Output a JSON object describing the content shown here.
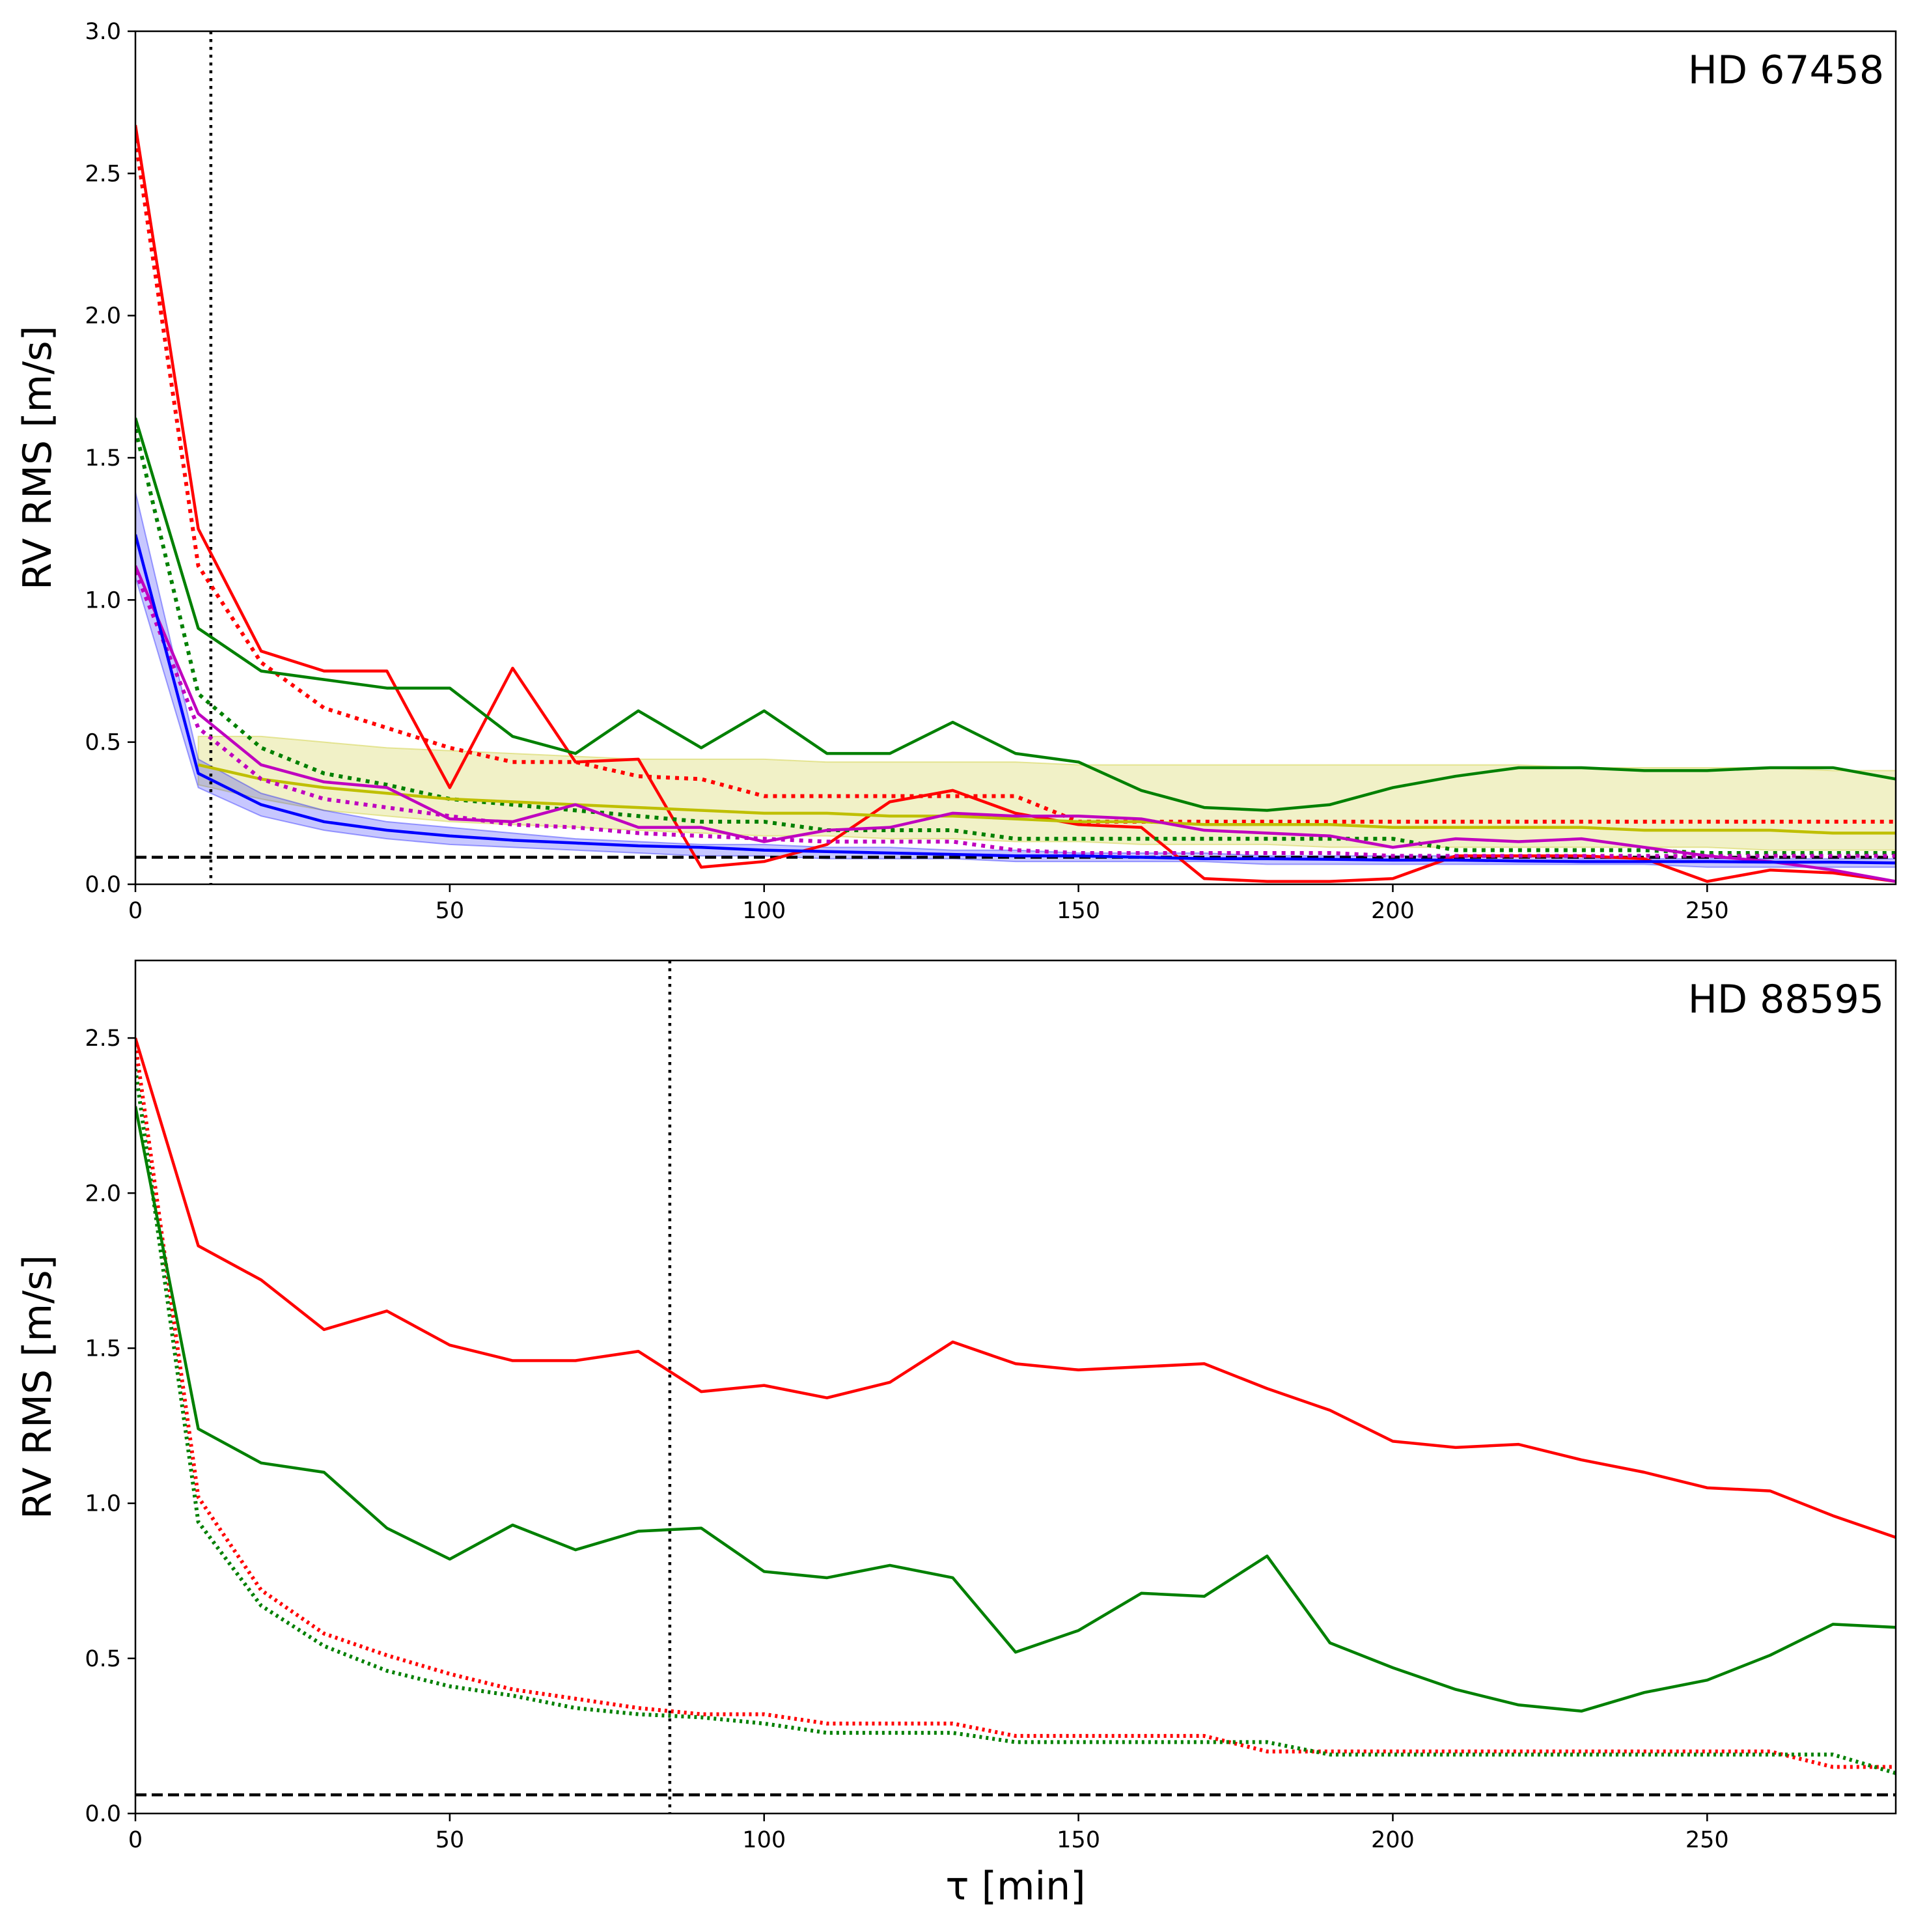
{
  "chart_data": [
    {
      "type": "line",
      "title": "HD 67458",
      "xlabel": "",
      "ylabel": "RV RMS [m/s]",
      "xlim": [
        0,
        280
      ],
      "ylim": [
        0,
        3.0
      ],
      "xticks": [
        0,
        50,
        100,
        150,
        200,
        250
      ],
      "xtick_labels": [
        "0",
        "50",
        "100",
        "150",
        "200",
        "250"
      ],
      "yticks": [
        0.0,
        0.5,
        1.0,
        1.5,
        2.0,
        2.5,
        3.0
      ],
      "ytick_labels": [
        "0.0",
        "0.5",
        "1.0",
        "1.5",
        "2.0",
        "2.5",
        "3.0"
      ],
      "vline": 12,
      "hline": 0.095,
      "bands": [
        {
          "name": "yellow-band",
          "color": "#bfbf00",
          "x": [
            10,
            20,
            30,
            40,
            50,
            60,
            70,
            80,
            90,
            100,
            110,
            120,
            130,
            140,
            150,
            160,
            170,
            180,
            190,
            200,
            210,
            220,
            230,
            240,
            250,
            260,
            270,
            280
          ],
          "lower": [
            0.35,
            0.3,
            0.26,
            0.24,
            0.22,
            0.21,
            0.2,
            0.19,
            0.18,
            0.17,
            0.17,
            0.16,
            0.16,
            0.15,
            0.15,
            0.14,
            0.14,
            0.14,
            0.13,
            0.13,
            0.13,
            0.13,
            0.13,
            0.13,
            0.13,
            0.12,
            0.12,
            0.12
          ],
          "upper": [
            0.52,
            0.52,
            0.5,
            0.48,
            0.47,
            0.46,
            0.45,
            0.44,
            0.44,
            0.44,
            0.43,
            0.43,
            0.43,
            0.43,
            0.42,
            0.42,
            0.42,
            0.42,
            0.42,
            0.42,
            0.42,
            0.42,
            0.41,
            0.41,
            0.41,
            0.41,
            0.4,
            0.4
          ]
        },
        {
          "name": "blue-band",
          "color": "#0000ff",
          "x": [
            0,
            10,
            20,
            30,
            40,
            50,
            60,
            70,
            80,
            90,
            100,
            110,
            120,
            130,
            140,
            150,
            160,
            170,
            180,
            190,
            200,
            210,
            220,
            230,
            240,
            250,
            260,
            270,
            280
          ],
          "lower": [
            1.08,
            0.34,
            0.24,
            0.19,
            0.16,
            0.14,
            0.13,
            0.12,
            0.11,
            0.1,
            0.1,
            0.09,
            0.09,
            0.09,
            0.08,
            0.08,
            0.08,
            0.08,
            0.07,
            0.07,
            0.07,
            0.07,
            0.07,
            0.07,
            0.07,
            0.06,
            0.06,
            0.06,
            0.06
          ],
          "upper": [
            1.38,
            0.44,
            0.32,
            0.26,
            0.22,
            0.2,
            0.18,
            0.16,
            0.15,
            0.14,
            0.14,
            0.13,
            0.13,
            0.12,
            0.12,
            0.11,
            0.11,
            0.11,
            0.1,
            0.1,
            0.1,
            0.1,
            0.1,
            0.09,
            0.09,
            0.09,
            0.09,
            0.09,
            0.09
          ]
        }
      ],
      "series": [
        {
          "name": "red-solid",
          "color": "#ff0000",
          "style": "solid",
          "x": [
            0,
            10,
            20,
            30,
            40,
            50,
            60,
            70,
            80,
            90,
            100,
            110,
            120,
            130,
            140,
            150,
            160,
            170,
            180,
            190,
            200,
            210,
            220,
            230,
            240,
            250,
            260,
            270,
            280
          ],
          "values": [
            2.67,
            1.25,
            0.82,
            0.75,
            0.75,
            0.34,
            0.76,
            0.43,
            0.44,
            0.06,
            0.08,
            0.14,
            0.29,
            0.33,
            0.25,
            0.21,
            0.2,
            0.02,
            0.01,
            0.01,
            0.02,
            0.1,
            0.1,
            0.1,
            0.09,
            0.01,
            0.05,
            0.04,
            0.01
          ]
        },
        {
          "name": "red-dotted",
          "color": "#ff0000",
          "style": "dotted",
          "x": [
            0,
            10,
            20,
            30,
            40,
            50,
            60,
            70,
            80,
            90,
            100,
            110,
            120,
            130,
            140,
            150,
            160,
            170,
            180,
            190,
            200,
            210,
            220,
            230,
            240,
            250,
            260,
            270,
            280
          ],
          "values": [
            2.62,
            1.12,
            0.78,
            0.62,
            0.55,
            0.48,
            0.43,
            0.43,
            0.38,
            0.37,
            0.31,
            0.31,
            0.31,
            0.31,
            0.31,
            0.22,
            0.22,
            0.22,
            0.22,
            0.22,
            0.22,
            0.22,
            0.22,
            0.22,
            0.22,
            0.22,
            0.22,
            0.22,
            0.22
          ]
        },
        {
          "name": "green-solid",
          "color": "#008000",
          "style": "solid",
          "x": [
            0,
            10,
            20,
            30,
            40,
            50,
            60,
            70,
            80,
            90,
            100,
            110,
            120,
            130,
            140,
            150,
            160,
            170,
            180,
            190,
            200,
            210,
            220,
            230,
            240,
            250,
            260,
            270,
            280
          ],
          "values": [
            1.64,
            0.9,
            0.75,
            0.72,
            0.69,
            0.69,
            0.52,
            0.46,
            0.61,
            0.48,
            0.61,
            0.46,
            0.46,
            0.57,
            0.46,
            0.43,
            0.33,
            0.27,
            0.26,
            0.28,
            0.34,
            0.38,
            0.41,
            0.41,
            0.4,
            0.4,
            0.41,
            0.41,
            0.37
          ]
        },
        {
          "name": "green-dotted",
          "color": "#008000",
          "style": "dotted",
          "x": [
            0,
            10,
            20,
            30,
            40,
            50,
            60,
            70,
            80,
            90,
            100,
            110,
            120,
            130,
            140,
            150,
            160,
            170,
            180,
            190,
            200,
            210,
            220,
            230,
            240,
            250,
            260,
            270,
            280
          ],
          "values": [
            1.6,
            0.67,
            0.48,
            0.39,
            0.35,
            0.3,
            0.28,
            0.26,
            0.24,
            0.22,
            0.22,
            0.19,
            0.19,
            0.19,
            0.16,
            0.16,
            0.16,
            0.16,
            0.16,
            0.16,
            0.16,
            0.12,
            0.12,
            0.12,
            0.12,
            0.11,
            0.11,
            0.11,
            0.11
          ]
        },
        {
          "name": "yellow-solid",
          "color": "#bfbf00",
          "style": "solid",
          "x": [
            10,
            20,
            30,
            40,
            50,
            60,
            70,
            80,
            90,
            100,
            110,
            120,
            130,
            140,
            150,
            160,
            170,
            180,
            190,
            200,
            210,
            220,
            230,
            240,
            250,
            260,
            270,
            280
          ],
          "values": [
            0.42,
            0.37,
            0.34,
            0.32,
            0.3,
            0.29,
            0.28,
            0.27,
            0.26,
            0.25,
            0.25,
            0.24,
            0.24,
            0.23,
            0.22,
            0.22,
            0.21,
            0.21,
            0.21,
            0.2,
            0.2,
            0.2,
            0.2,
            0.19,
            0.19,
            0.19,
            0.18,
            0.18
          ]
        },
        {
          "name": "magenta-solid",
          "color": "#bf00bf",
          "style": "solid",
          "x": [
            0,
            10,
            20,
            30,
            40,
            50,
            60,
            70,
            80,
            90,
            100,
            110,
            120,
            130,
            140,
            150,
            160,
            170,
            180,
            190,
            200,
            210,
            220,
            230,
            240,
            250,
            260,
            270,
            280
          ],
          "values": [
            1.12,
            0.6,
            0.42,
            0.36,
            0.34,
            0.23,
            0.22,
            0.28,
            0.2,
            0.2,
            0.15,
            0.19,
            0.2,
            0.25,
            0.24,
            0.24,
            0.23,
            0.19,
            0.18,
            0.17,
            0.13,
            0.16,
            0.15,
            0.16,
            0.13,
            0.1,
            0.08,
            0.05,
            0.01
          ]
        },
        {
          "name": "magenta-dotted",
          "color": "#bf00bf",
          "style": "dotted",
          "x": [
            0,
            10,
            20,
            30,
            40,
            50,
            60,
            70,
            80,
            90,
            100,
            110,
            120,
            130,
            140,
            150,
            160,
            170,
            180,
            190,
            200,
            210,
            220,
            230,
            240,
            250,
            260,
            270,
            280
          ],
          "values": [
            1.1,
            0.55,
            0.37,
            0.3,
            0.27,
            0.24,
            0.21,
            0.2,
            0.18,
            0.17,
            0.16,
            0.15,
            0.15,
            0.15,
            0.12,
            0.11,
            0.11,
            0.11,
            0.11,
            0.11,
            0.1,
            0.1,
            0.1,
            0.1,
            0.1,
            0.1,
            0.1,
            0.1,
            0.1
          ]
        },
        {
          "name": "blue-solid",
          "color": "#0000ff",
          "style": "solid",
          "x": [
            0,
            10,
            20,
            30,
            40,
            50,
            60,
            70,
            80,
            90,
            100,
            110,
            120,
            130,
            140,
            150,
            160,
            170,
            180,
            190,
            200,
            210,
            220,
            230,
            240,
            250,
            260,
            270,
            280
          ],
          "values": [
            1.23,
            0.39,
            0.28,
            0.22,
            0.19,
            0.17,
            0.155,
            0.145,
            0.135,
            0.13,
            0.12,
            0.115,
            0.11,
            0.105,
            0.1,
            0.1,
            0.095,
            0.09,
            0.09,
            0.088,
            0.085,
            0.085,
            0.082,
            0.08,
            0.08,
            0.08,
            0.078,
            0.078,
            0.075
          ]
        }
      ]
    },
    {
      "type": "line",
      "title": "HD 88595",
      "xlabel": "τ [min]",
      "ylabel": "RV RMS [m/s]",
      "xlim": [
        0,
        280
      ],
      "ylim": [
        0,
        2.75
      ],
      "xticks": [
        0,
        50,
        100,
        150,
        200,
        250
      ],
      "xtick_labels": [
        "0",
        "50",
        "100",
        "150",
        "200",
        "250"
      ],
      "yticks": [
        0.0,
        0.5,
        1.0,
        1.5,
        2.0,
        2.5
      ],
      "ytick_labels": [
        "0.0",
        "0.5",
        "1.0",
        "1.5",
        "2.0",
        "2.5"
      ],
      "vline": 85,
      "hline": 0.06,
      "bands": [],
      "series": [
        {
          "name": "red-solid",
          "color": "#ff0000",
          "style": "solid",
          "x": [
            0,
            10,
            20,
            30,
            40,
            50,
            60,
            70,
            80,
            90,
            100,
            110,
            120,
            130,
            140,
            150,
            160,
            170,
            180,
            190,
            200,
            210,
            220,
            230,
            240,
            250,
            260,
            270,
            280
          ],
          "values": [
            2.5,
            1.83,
            1.72,
            1.56,
            1.62,
            1.51,
            1.46,
            1.46,
            1.49,
            1.36,
            1.38,
            1.34,
            1.39,
            1.52,
            1.45,
            1.43,
            1.44,
            1.45,
            1.37,
            1.3,
            1.2,
            1.18,
            1.19,
            1.14,
            1.1,
            1.05,
            1.04,
            0.96,
            0.89
          ]
        },
        {
          "name": "red-dotted",
          "color": "#ff0000",
          "style": "dotted",
          "x": [
            0,
            10,
            20,
            30,
            40,
            50,
            60,
            70,
            80,
            90,
            100,
            110,
            120,
            130,
            140,
            150,
            160,
            170,
            180,
            190,
            200,
            210,
            220,
            230,
            240,
            250,
            260,
            270,
            280
          ],
          "values": [
            2.48,
            1.02,
            0.72,
            0.58,
            0.51,
            0.45,
            0.4,
            0.37,
            0.34,
            0.32,
            0.32,
            0.29,
            0.29,
            0.29,
            0.25,
            0.25,
            0.25,
            0.25,
            0.2,
            0.2,
            0.2,
            0.2,
            0.2,
            0.2,
            0.2,
            0.2,
            0.2,
            0.15,
            0.15
          ]
        },
        {
          "name": "green-solid",
          "color": "#008000",
          "style": "solid",
          "x": [
            0,
            10,
            20,
            30,
            40,
            50,
            60,
            70,
            80,
            90,
            100,
            110,
            120,
            130,
            140,
            150,
            160,
            170,
            180,
            190,
            200,
            210,
            220,
            230,
            240,
            250,
            260,
            270,
            280
          ],
          "values": [
            2.28,
            1.24,
            1.13,
            1.1,
            0.92,
            0.82,
            0.93,
            0.85,
            0.91,
            0.92,
            0.78,
            0.76,
            0.8,
            0.76,
            0.52,
            0.59,
            0.71,
            0.7,
            0.83,
            0.55,
            0.47,
            0.4,
            0.35,
            0.33,
            0.39,
            0.43,
            0.51,
            0.61,
            0.6
          ]
        },
        {
          "name": "green-dotted",
          "color": "#008000",
          "style": "dotted",
          "x": [
            0,
            10,
            20,
            30,
            40,
            50,
            60,
            70,
            80,
            90,
            100,
            110,
            120,
            130,
            140,
            150,
            160,
            170,
            180,
            190,
            200,
            210,
            220,
            230,
            240,
            250,
            260,
            270,
            280
          ],
          "values": [
            2.4,
            0.94,
            0.67,
            0.54,
            0.46,
            0.41,
            0.38,
            0.34,
            0.32,
            0.31,
            0.29,
            0.26,
            0.26,
            0.26,
            0.23,
            0.23,
            0.23,
            0.23,
            0.23,
            0.19,
            0.19,
            0.19,
            0.19,
            0.19,
            0.19,
            0.19,
            0.19,
            0.19,
            0.13
          ]
        }
      ]
    }
  ]
}
